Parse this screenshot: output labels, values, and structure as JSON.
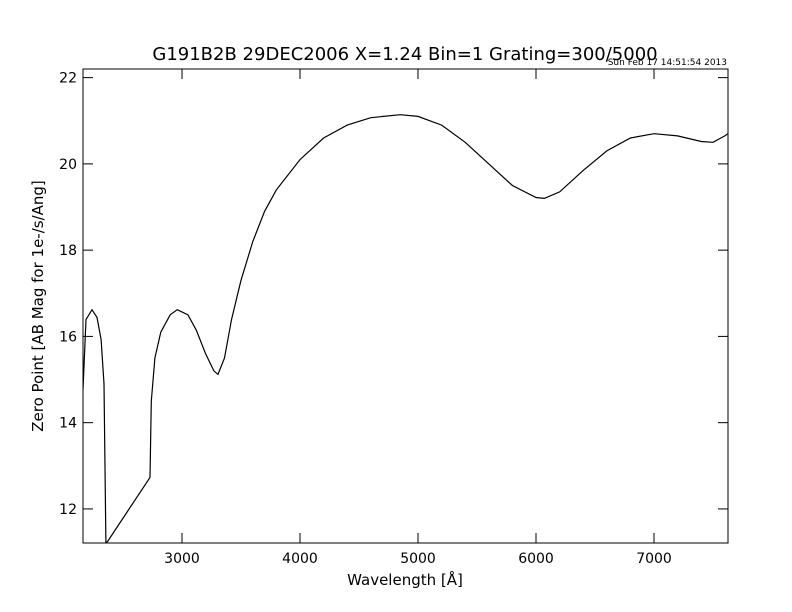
{
  "chart_data": {
    "type": "line",
    "title": "G191B2B 29DEC2006 X=1.24 Bin=1 Grating=300/5000",
    "timestamp": "Sun Feb 17 14:51:54 2013",
    "x_label": "Wavelength [Å]",
    "y_label": "Zero Point [AB Mag for 1e-/s/Ang]",
    "color": "#000000",
    "x": [
      2161,
      2186,
      2237,
      2280,
      2314,
      2339,
      2355,
      2370,
      2729,
      2740,
      2770,
      2820,
      2900,
      2960,
      3050,
      3120,
      3200,
      3270,
      3305,
      3360,
      3420,
      3500,
      3600,
      3700,
      3800,
      4000,
      4200,
      4400,
      4600,
      4850,
      5000,
      5200,
      5400,
      5600,
      5800,
      6000,
      6070,
      6200,
      6400,
      6600,
      6800,
      7000,
      7200,
      7400,
      7500,
      7600,
      7627
    ],
    "values": [
      14.77,
      16.39,
      16.62,
      16.44,
      15.93,
      14.9,
      11.21,
      11.25,
      12.73,
      14.5,
      15.5,
      16.1,
      16.5,
      16.62,
      16.5,
      16.15,
      15.6,
      15.2,
      15.12,
      15.5,
      16.4,
      17.3,
      18.2,
      18.9,
      19.4,
      20.1,
      20.6,
      20.9,
      21.07,
      21.14,
      21.1,
      20.9,
      20.5,
      20.0,
      19.5,
      19.22,
      19.2,
      19.35,
      19.85,
      20.3,
      20.6,
      20.7,
      20.65,
      20.52,
      20.5,
      20.65,
      20.7
    ],
    "xlim": [
      2161,
      7627
    ],
    "ylim": [
      11.21,
      22.2
    ],
    "xticks": [
      3000,
      4000,
      5000,
      6000,
      7000
    ],
    "yticks": [
      12,
      14,
      16,
      18,
      20,
      22
    ]
  }
}
